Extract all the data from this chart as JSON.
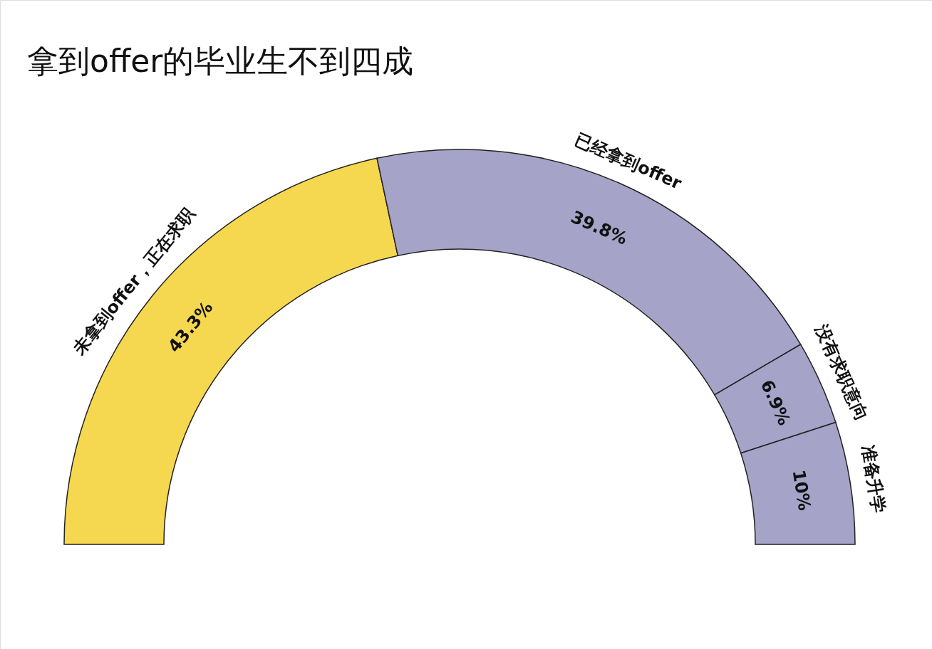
{
  "chart_data": {
    "type": "donut",
    "title": "拿到offer的毕业生不到四成",
    "categories": [
      "未拿到offer，正在求职",
      "已经拿到offer",
      "没有求职意向",
      "准备升学"
    ],
    "values": [
      43.3,
      39.8,
      6.9,
      10
    ],
    "colors": [
      "#f5d84f",
      "#a5a3c8",
      "#a5a3c8",
      "#a5a3c8"
    ],
    "value_labels": [
      "43.3%",
      "39.8%",
      "6.9%",
      "10%"
    ]
  }
}
